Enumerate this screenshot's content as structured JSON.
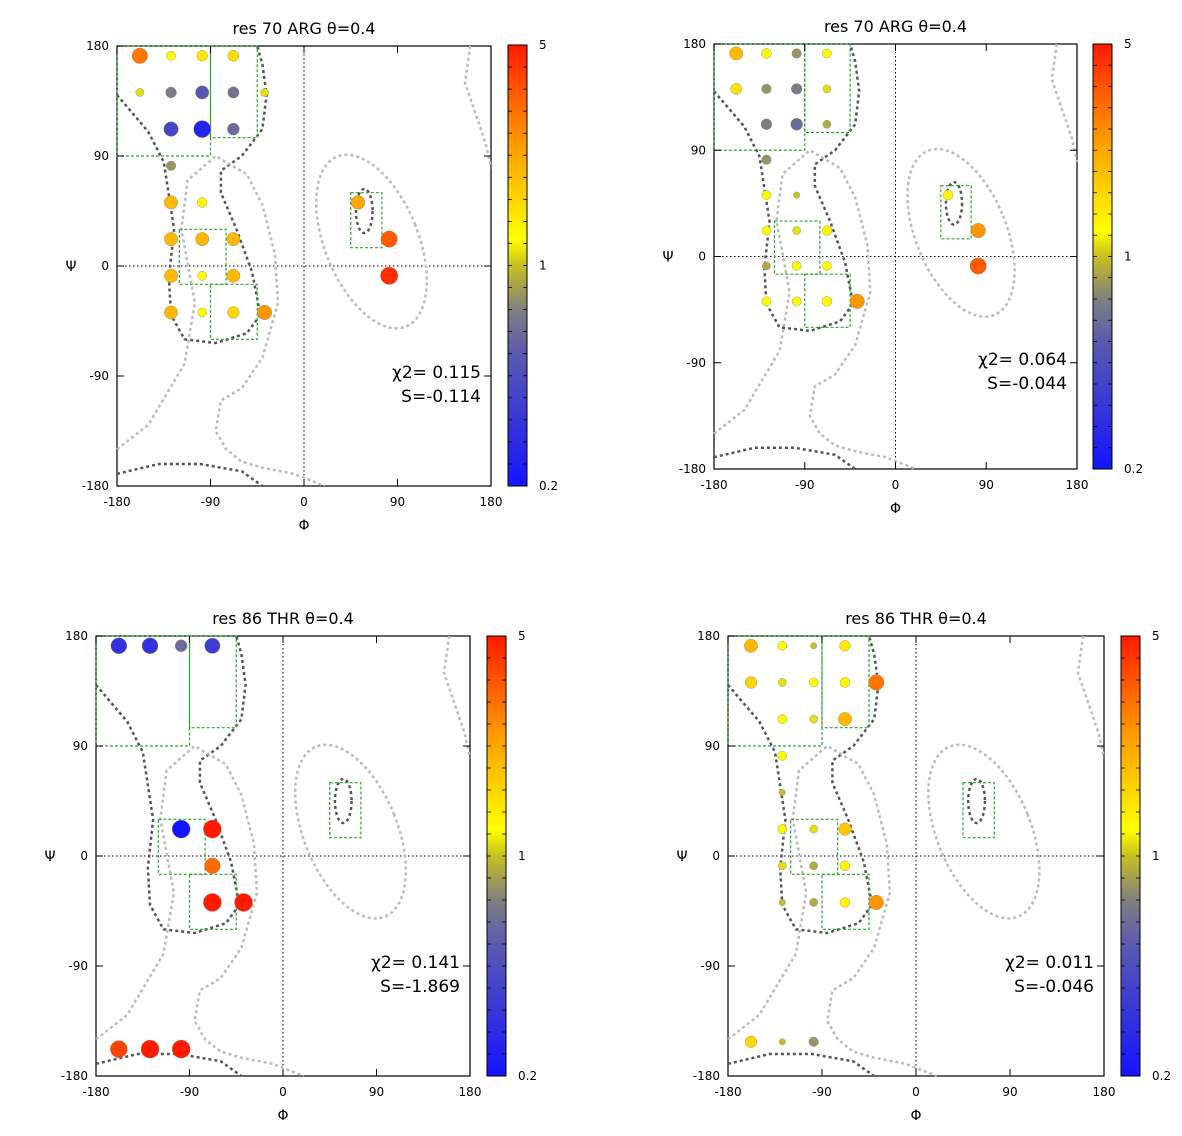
{
  "chart_data": [
    {
      "type": "scatter",
      "title": "res 70 ARG θ=0.4",
      "xlabel": "Φ",
      "ylabel": "Ψ",
      "xlim": [
        -180,
        180
      ],
      "ylim": [
        -180,
        180
      ],
      "xticks": [
        "-180",
        "-90",
        "0",
        "90",
        "180"
      ],
      "yticks": [
        "-180",
        "-90",
        "0",
        "90",
        "180"
      ],
      "colorbar": {
        "min": 0.2,
        "max": 5,
        "labels": [
          "5",
          "1",
          "0.2"
        ]
      },
      "annotation": [
        "χ2= 0.115",
        "S=-0.114"
      ],
      "points": [
        {
          "phi": -158,
          "psi": 172,
          "ratio": 3.0
        },
        {
          "phi": -128,
          "psi": 172,
          "ratio": 1.2
        },
        {
          "phi": -98,
          "psi": 172,
          "ratio": 1.4
        },
        {
          "phi": -68,
          "psi": 172,
          "ratio": 1.5
        },
        {
          "phi": -158,
          "psi": 142,
          "ratio": 1.1
        },
        {
          "phi": -128,
          "psi": 142,
          "ratio": 0.7
        },
        {
          "phi": -98,
          "psi": 142,
          "ratio": 0.5
        },
        {
          "phi": -68,
          "psi": 142,
          "ratio": 0.65
        },
        {
          "phi": -38,
          "psi": 142,
          "ratio": 1.1
        },
        {
          "phi": -128,
          "psi": 112,
          "ratio": 0.4
        },
        {
          "phi": -98,
          "psi": 112,
          "ratio": 0.25
        },
        {
          "phi": -68,
          "psi": 112,
          "ratio": 0.6
        },
        {
          "phi": -128,
          "psi": 82,
          "ratio": 0.8
        },
        {
          "phi": -128,
          "psi": 52,
          "ratio": 2.0
        },
        {
          "phi": -98,
          "psi": 52,
          "ratio": 1.3
        },
        {
          "phi": -128,
          "psi": 22,
          "ratio": 2.0
        },
        {
          "phi": -98,
          "psi": 22,
          "ratio": 2.0
        },
        {
          "phi": -68,
          "psi": 22,
          "ratio": 2.0
        },
        {
          "phi": -128,
          "psi": -8,
          "ratio": 2.0
        },
        {
          "phi": -98,
          "psi": -8,
          "ratio": 1.2
        },
        {
          "phi": -68,
          "psi": -8,
          "ratio": 2.0
        },
        {
          "phi": -128,
          "psi": -38,
          "ratio": 2.0
        },
        {
          "phi": -98,
          "psi": -38,
          "ratio": 1.2
        },
        {
          "phi": -68,
          "psi": -38,
          "ratio": 1.6
        },
        {
          "phi": -38,
          "psi": -38,
          "ratio": 2.5
        },
        {
          "phi": 52,
          "psi": 52,
          "ratio": 2.2
        },
        {
          "phi": 82,
          "psi": 22,
          "ratio": 3.5
        },
        {
          "phi": 82,
          "psi": -8,
          "ratio": 4.5
        }
      ]
    },
    {
      "type": "scatter",
      "title": "res 70 ARG θ=0.4",
      "xlabel": "Φ",
      "ylabel": "Ψ",
      "xlim": [
        -180,
        180
      ],
      "ylim": [
        -180,
        180
      ],
      "xticks": [
        "-180",
        "-90",
        "0",
        "90",
        "180"
      ],
      "yticks": [
        "-180",
        "-90",
        "0",
        "90",
        "180"
      ],
      "colorbar": {
        "min": 0.2,
        "max": 5,
        "labels": [
          "5",
          "1",
          "0.2"
        ]
      },
      "annotation": [
        "χ2= 0.064",
        "S=-0.044"
      ],
      "points": [
        {
          "phi": -158,
          "psi": 172,
          "ratio": 2.0
        },
        {
          "phi": -128,
          "psi": 172,
          "ratio": 1.3
        },
        {
          "phi": -98,
          "psi": 172,
          "ratio": 0.8
        },
        {
          "phi": -68,
          "psi": 172,
          "ratio": 1.2
        },
        {
          "phi": -158,
          "psi": 142,
          "ratio": 1.5
        },
        {
          "phi": -128,
          "psi": 142,
          "ratio": 0.8
        },
        {
          "phi": -98,
          "psi": 142,
          "ratio": 0.7
        },
        {
          "phi": -68,
          "psi": 142,
          "ratio": 1.1
        },
        {
          "phi": -128,
          "psi": 112,
          "ratio": 0.7
        },
        {
          "phi": -98,
          "psi": 112,
          "ratio": 0.6
        },
        {
          "phi": -68,
          "psi": 112,
          "ratio": 0.9
        },
        {
          "phi": -128,
          "psi": 82,
          "ratio": 0.8
        },
        {
          "phi": -128,
          "psi": 52,
          "ratio": 1.2
        },
        {
          "phi": -98,
          "psi": 52,
          "ratio": 1.0
        },
        {
          "phi": -128,
          "psi": 22,
          "ratio": 1.2
        },
        {
          "phi": -98,
          "psi": 22,
          "ratio": 1.1
        },
        {
          "phi": -68,
          "psi": 22,
          "ratio": 1.3
        },
        {
          "phi": -128,
          "psi": -8,
          "ratio": 0.9
        },
        {
          "phi": -98,
          "psi": -8,
          "ratio": 1.2
        },
        {
          "phi": -68,
          "psi": -8,
          "ratio": 1.2
        },
        {
          "phi": -128,
          "psi": -38,
          "ratio": 1.2
        },
        {
          "phi": -98,
          "psi": -38,
          "ratio": 1.2
        },
        {
          "phi": -68,
          "psi": -38,
          "ratio": 1.3
        },
        {
          "phi": -38,
          "psi": -38,
          "ratio": 2.5
        },
        {
          "phi": 52,
          "psi": 52,
          "ratio": 1.3
        },
        {
          "phi": 82,
          "psi": 22,
          "ratio": 2.5
        },
        {
          "phi": 82,
          "psi": -8,
          "ratio": 3.5
        }
      ]
    },
    {
      "type": "scatter",
      "title": "res 86 THR θ=0.4",
      "xlabel": "Φ",
      "ylabel": "Ψ",
      "xlim": [
        -180,
        180
      ],
      "ylim": [
        -180,
        180
      ],
      "xticks": [
        "-180",
        "-90",
        "0",
        "90",
        "180"
      ],
      "yticks": [
        "-180",
        "-90",
        "0",
        "90",
        "180"
      ],
      "colorbar": {
        "min": 0.2,
        "max": 5,
        "labels": [
          "5",
          "1",
          "0.2"
        ]
      },
      "annotation": [
        "χ2= 0.141",
        "S=-1.869"
      ],
      "points": [
        {
          "phi": -158,
          "psi": 172,
          "ratio": 0.3
        },
        {
          "phi": -128,
          "psi": 172,
          "ratio": 0.3
        },
        {
          "phi": -98,
          "psi": 172,
          "ratio": 0.6
        },
        {
          "phi": -68,
          "psi": 172,
          "ratio": 0.35
        },
        {
          "phi": -98,
          "psi": 22,
          "ratio": 0.2
        },
        {
          "phi": -68,
          "psi": 22,
          "ratio": 5.0
        },
        {
          "phi": -68,
          "psi": -8,
          "ratio": 3.2
        },
        {
          "phi": -68,
          "psi": -38,
          "ratio": 5.0
        },
        {
          "phi": -38,
          "psi": -38,
          "ratio": 5.0
        },
        {
          "phi": -158,
          "psi": -158,
          "ratio": 4.0
        },
        {
          "phi": -128,
          "psi": -158,
          "ratio": 5.0
        },
        {
          "phi": -98,
          "psi": -158,
          "ratio": 5.0
        }
      ]
    },
    {
      "type": "scatter",
      "title": "res 86 THR θ=0.4",
      "xlabel": "Φ",
      "ylabel": "Ψ",
      "xlim": [
        -180,
        180
      ],
      "ylim": [
        -180,
        180
      ],
      "xticks": [
        "-180",
        "-90",
        "0",
        "90",
        "180"
      ],
      "yticks": [
        "-180",
        "-90",
        "0",
        "90",
        "180"
      ],
      "colorbar": {
        "min": 0.2,
        "max": 5,
        "labels": [
          "5",
          "1",
          "0.2"
        ]
      },
      "annotation": [
        "χ2= 0.011",
        "S=-0.046"
      ],
      "points": [
        {
          "phi": -158,
          "psi": 172,
          "ratio": 2.0
        },
        {
          "phi": -128,
          "psi": 172,
          "ratio": 1.2
        },
        {
          "phi": -98,
          "psi": 172,
          "ratio": 1.0
        },
        {
          "phi": -68,
          "psi": 172,
          "ratio": 1.4
        },
        {
          "phi": -158,
          "psi": 142,
          "ratio": 1.6
        },
        {
          "phi": -128,
          "psi": 142,
          "ratio": 1.1
        },
        {
          "phi": -98,
          "psi": 142,
          "ratio": 1.2
        },
        {
          "phi": -68,
          "psi": 142,
          "ratio": 1.3
        },
        {
          "phi": -38,
          "psi": 142,
          "ratio": 3.0
        },
        {
          "phi": -128,
          "psi": 112,
          "ratio": 1.2
        },
        {
          "phi": -98,
          "psi": 112,
          "ratio": 1.1
        },
        {
          "phi": -68,
          "psi": 112,
          "ratio": 2.0
        },
        {
          "phi": -128,
          "psi": 82,
          "ratio": 1.2
        },
        {
          "phi": -128,
          "psi": 52,
          "ratio": 1.0
        },
        {
          "phi": -128,
          "psi": 22,
          "ratio": 1.2
        },
        {
          "phi": -98,
          "psi": 22,
          "ratio": 1.1
        },
        {
          "phi": -68,
          "psi": 22,
          "ratio": 1.8
        },
        {
          "phi": -128,
          "psi": -8,
          "ratio": 1.1
        },
        {
          "phi": -98,
          "psi": -8,
          "ratio": 0.9
        },
        {
          "phi": -68,
          "psi": -8,
          "ratio": 1.3
        },
        {
          "phi": -128,
          "psi": -38,
          "ratio": 1.0
        },
        {
          "phi": -98,
          "psi": -38,
          "ratio": 0.9
        },
        {
          "phi": -68,
          "psi": -38,
          "ratio": 1.3
        },
        {
          "phi": -38,
          "psi": -38,
          "ratio": 2.5
        },
        {
          "phi": -158,
          "psi": -152,
          "ratio": 1.6
        },
        {
          "phi": -128,
          "psi": -152,
          "ratio": 1.0
        },
        {
          "phi": -98,
          "psi": -152,
          "ratio": 0.8
        }
      ]
    }
  ]
}
